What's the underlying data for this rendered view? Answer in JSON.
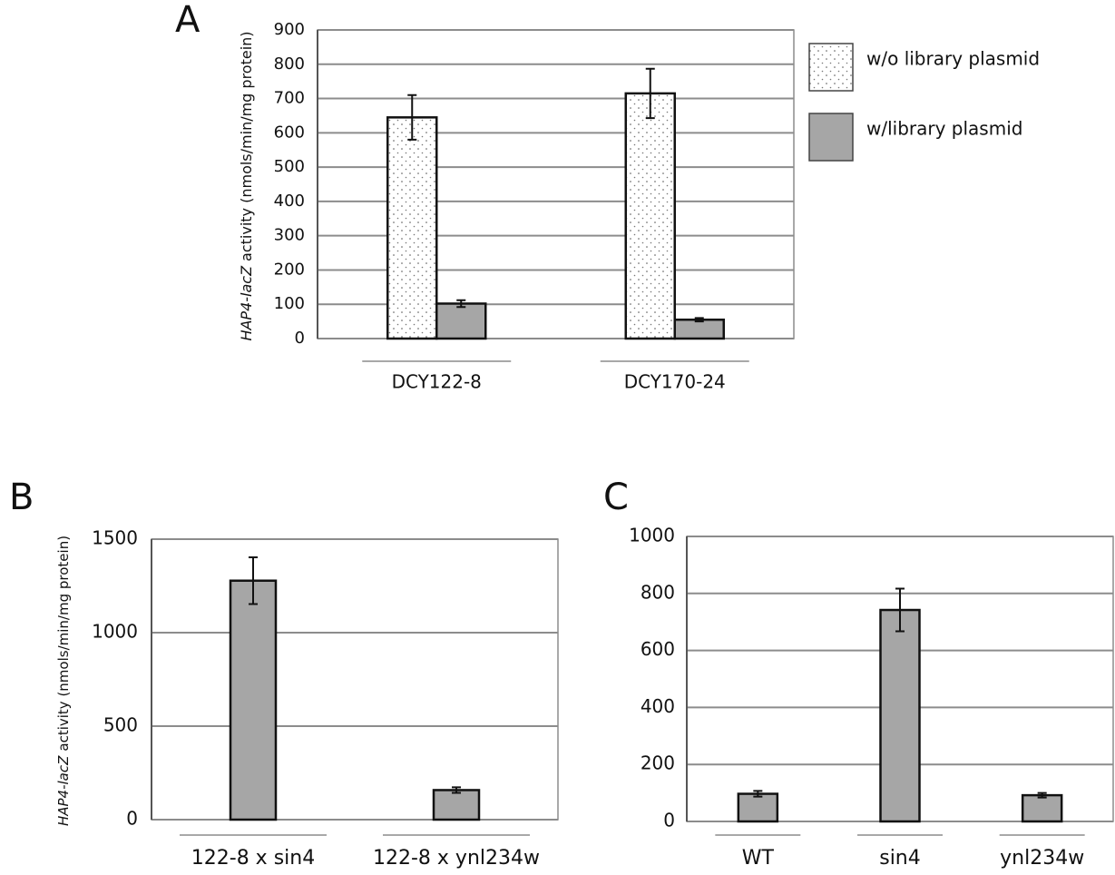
{
  "chart_data": [
    {
      "type": "bar",
      "panel": "A",
      "ylabel_italic": "HAP4-lacZ",
      "ylabel": "activity (nmols/min/mg protein)",
      "categories": [
        "DCY122-8",
        "DCY170-24"
      ],
      "series": [
        {
          "name": "w/o library plasmid",
          "color": "#ffffff",
          "pattern": "dots",
          "values": [
            645,
            715
          ],
          "errors": [
            65,
            72
          ]
        },
        {
          "name": "w/library plasmid",
          "color": "#a6a6a6",
          "values": [
            102,
            55
          ],
          "errors": [
            10,
            5
          ]
        }
      ],
      "ylim": [
        0,
        900
      ],
      "yticks": [
        0,
        100,
        200,
        300,
        400,
        500,
        600,
        700,
        800,
        900
      ],
      "grid": true,
      "legend": "right"
    },
    {
      "type": "bar",
      "panel": "B",
      "ylabel_italic": "HAP4-lacZ",
      "ylabel": "activity (nmols/min/mg protein)",
      "categories": [
        "122-8 x sin4",
        "122-8 x ynl234w"
      ],
      "series": [
        {
          "color": "#a6a6a6",
          "values": [
            1278,
            158
          ],
          "errors": [
            125,
            15
          ]
        }
      ],
      "ylim": [
        0,
        1500
      ],
      "yticks": [
        0,
        500,
        1000,
        1500
      ],
      "grid": true
    },
    {
      "type": "bar",
      "panel": "C",
      "categories": [
        "WT",
        "sin4",
        "ynl234w"
      ],
      "series": [
        {
          "color": "#a6a6a6",
          "values": [
            97,
            742,
            92
          ],
          "errors": [
            10,
            75,
            8
          ]
        }
      ],
      "ylim": [
        0,
        1000
      ],
      "yticks": [
        0,
        200,
        400,
        600,
        800,
        1000
      ],
      "grid": true
    }
  ]
}
